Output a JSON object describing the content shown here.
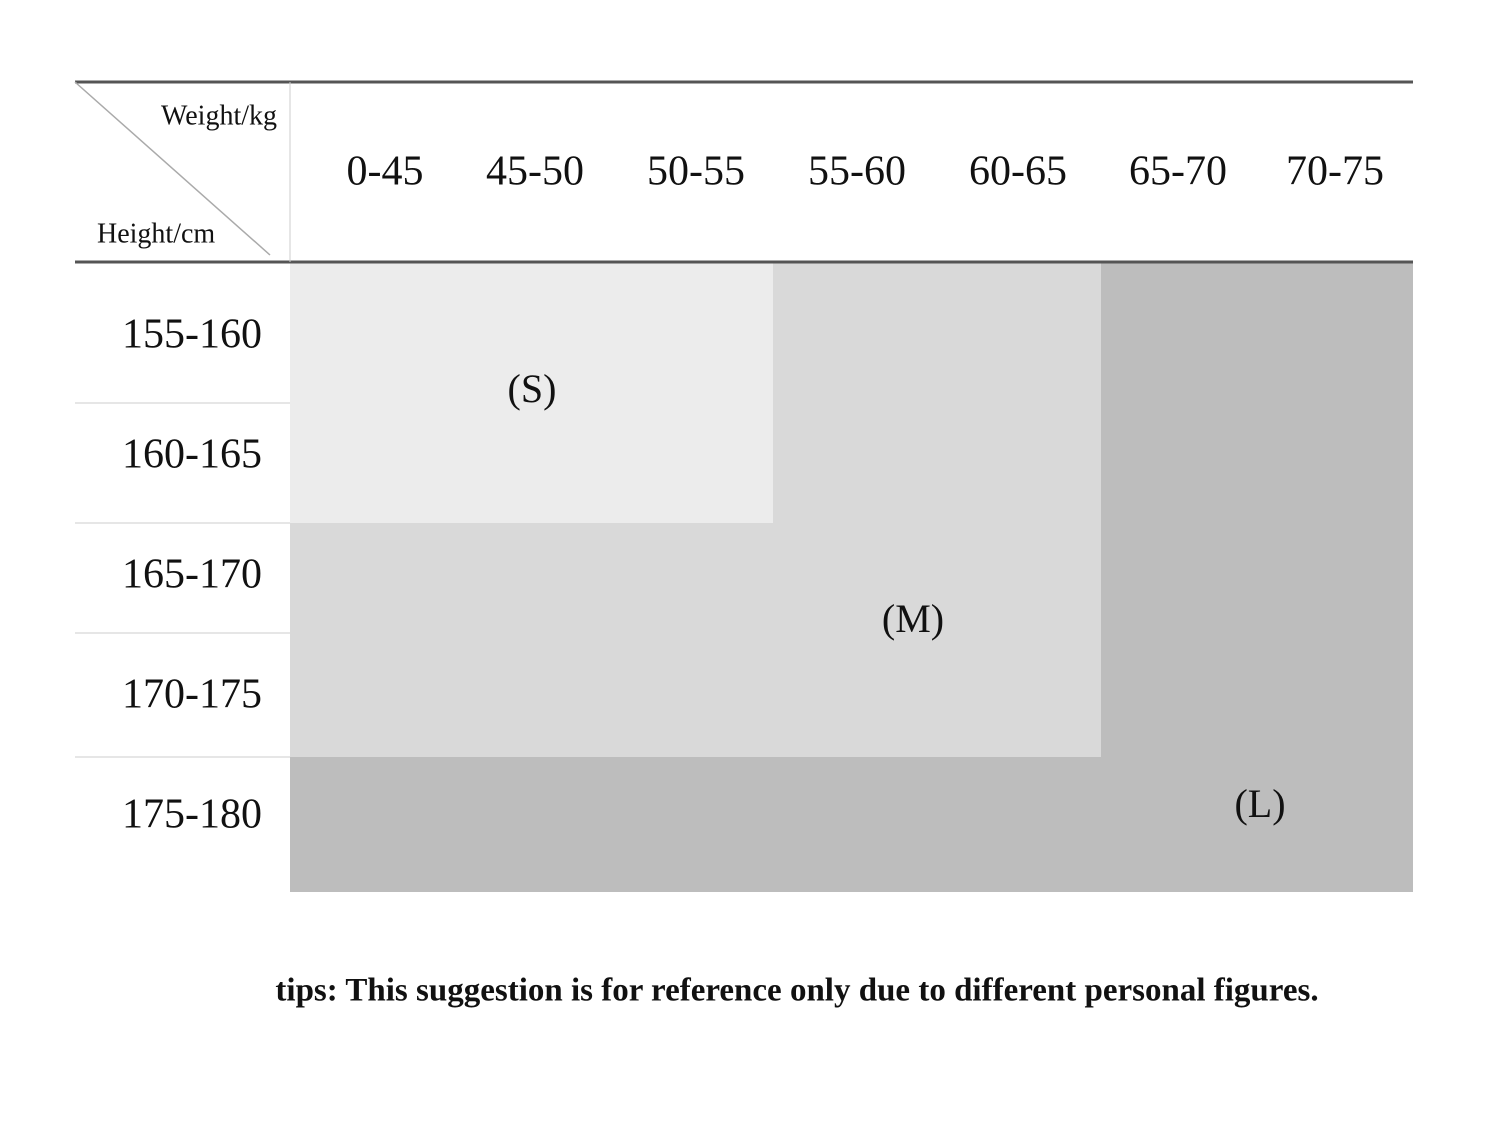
{
  "header": {
    "weight_label": "Weight/kg",
    "height_label": "Height/cm",
    "columns": [
      "0-45",
      "45-50",
      "50-55",
      "55-60",
      "60-65",
      "65-70",
      "70-75"
    ]
  },
  "rows": [
    "155-160",
    "160-165",
    "165-170",
    "170-175",
    "175-180"
  ],
  "regions": [
    "(S)",
    "(M)",
    "(L)"
  ],
  "tips": "tips: This suggestion is for reference only due to different personal figures."
}
